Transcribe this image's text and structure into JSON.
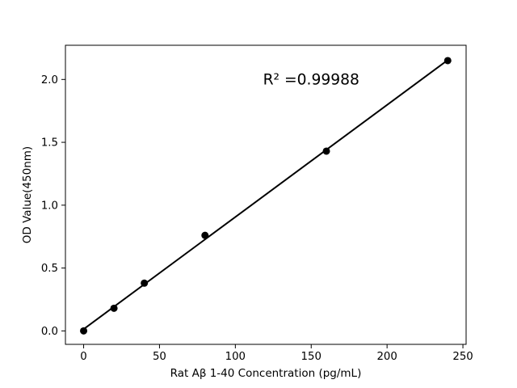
{
  "chart_data": {
    "type": "scatter",
    "title": "",
    "xlabel": "Rat Aβ 1-40 Concentration (pg/mL)",
    "ylabel": "OD Value(450nm)",
    "x": [
      0,
      20,
      40,
      80,
      160,
      240
    ],
    "y": [
      0.0,
      0.18,
      0.38,
      0.76,
      1.43,
      2.15
    ],
    "fit": {
      "kind": "linear-least-squares",
      "r_squared_label": "R² =0.99988",
      "annotation_x": 150,
      "annotation_y": 2.0
    },
    "xtick_values": [
      0,
      50,
      100,
      150,
      200,
      250
    ],
    "xtick_labels": [
      "0",
      "50",
      "100",
      "150",
      "200",
      "250"
    ],
    "ytick_values": [
      0.0,
      0.5,
      1.0,
      1.5,
      2.0
    ],
    "ytick_labels": [
      "0.0",
      "0.5",
      "1.0",
      "1.5",
      "2.0"
    ],
    "xlim": [
      -12.0,
      252.1
    ],
    "ylim": [
      -0.107,
      2.272
    ],
    "grid": false,
    "legend": "none",
    "marker_color": "#000000",
    "line_color": "#000000",
    "axis_color": "#000000",
    "background": "#ffffff"
  }
}
